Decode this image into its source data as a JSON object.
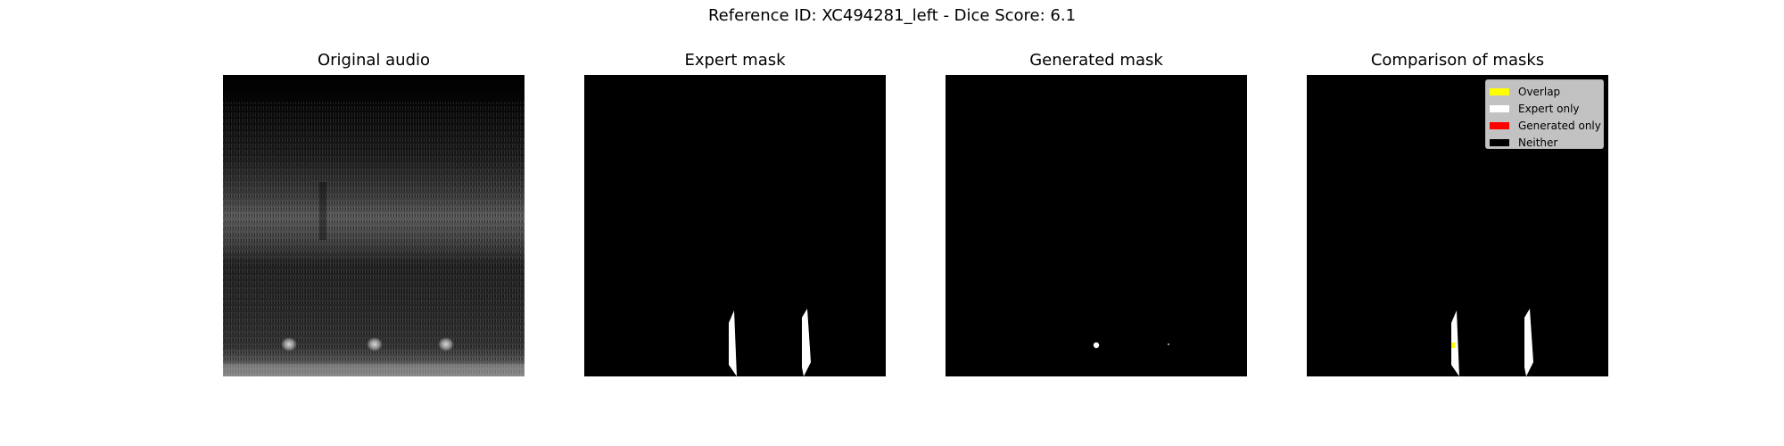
{
  "figure": {
    "title": "Reference ID: XC494281_left - Dice Score: 6.1"
  },
  "panels": [
    {
      "title": "Original audio"
    },
    {
      "title": "Expert mask"
    },
    {
      "title": "Generated mask"
    },
    {
      "title": "Comparison of masks"
    }
  ],
  "legend": {
    "items": [
      {
        "label": "Overlap",
        "color": "#ffff00"
      },
      {
        "label": "Expert only",
        "color": "#ffffff"
      },
      {
        "label": "Generated only",
        "color": "#ff0000"
      },
      {
        "label": "Neither",
        "color": "#000000"
      }
    ]
  },
  "colors": {
    "background": "#000000",
    "mask": "#ffffff",
    "overlap": "#ffff00",
    "spectrogram_band": "#7f7f7f"
  }
}
